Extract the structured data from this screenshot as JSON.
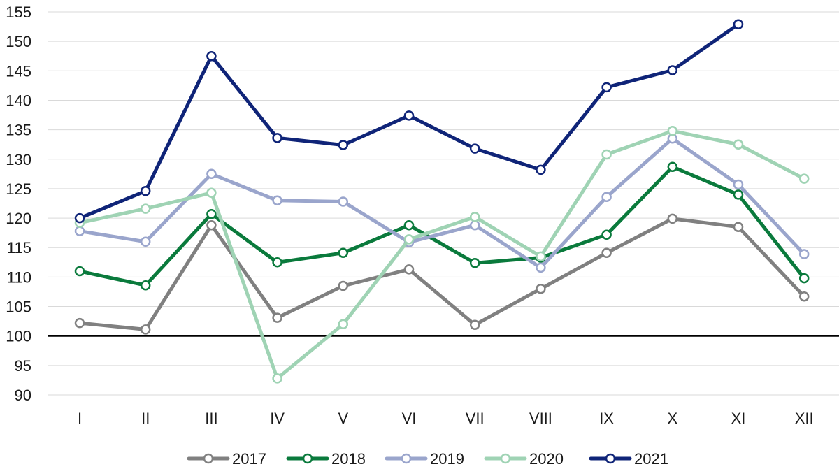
{
  "chart_data": {
    "type": "line",
    "title": "",
    "xlabel": "",
    "ylabel": "",
    "categories": [
      "I",
      "II",
      "III",
      "IV",
      "V",
      "VI",
      "VII",
      "VIII",
      "IX",
      "X",
      "XI",
      "XII"
    ],
    "ylim": [
      90,
      155
    ],
    "yticks": [
      "155",
      "150",
      "145",
      "140",
      "135",
      "130",
      "125",
      "120",
      "115",
      "110",
      "105",
      "100",
      "95",
      "90"
    ],
    "grid": true,
    "reference_line": 100,
    "legend_position": "bottom",
    "series": [
      {
        "name": "2017",
        "color": "#808080",
        "values": [
          102.2,
          101.1,
          118.8,
          103.1,
          108.5,
          111.3,
          101.9,
          108.0,
          114.1,
          119.9,
          118.5,
          106.7
        ]
      },
      {
        "name": "2018",
        "color": "#0a7a3c",
        "values": [
          111.0,
          108.6,
          120.7,
          112.5,
          114.1,
          118.8,
          112.4,
          113.3,
          117.2,
          128.7,
          124.0,
          109.8
        ]
      },
      {
        "name": "2019",
        "color": "#9aa5cc",
        "values": [
          117.8,
          116.0,
          127.5,
          123.0,
          122.8,
          115.9,
          118.8,
          111.6,
          123.6,
          133.5,
          125.7,
          113.9
        ]
      },
      {
        "name": "2020",
        "color": "#9fd3b4",
        "values": [
          119.2,
          121.6,
          124.3,
          92.8,
          102.0,
          116.4,
          120.2,
          113.5,
          130.8,
          134.8,
          132.5,
          126.7
        ]
      },
      {
        "name": "2021",
        "color": "#0f2478",
        "values": [
          120.0,
          124.6,
          147.5,
          133.6,
          132.4,
          137.4,
          131.8,
          128.2,
          142.2,
          145.1,
          152.9,
          null
        ]
      }
    ]
  }
}
